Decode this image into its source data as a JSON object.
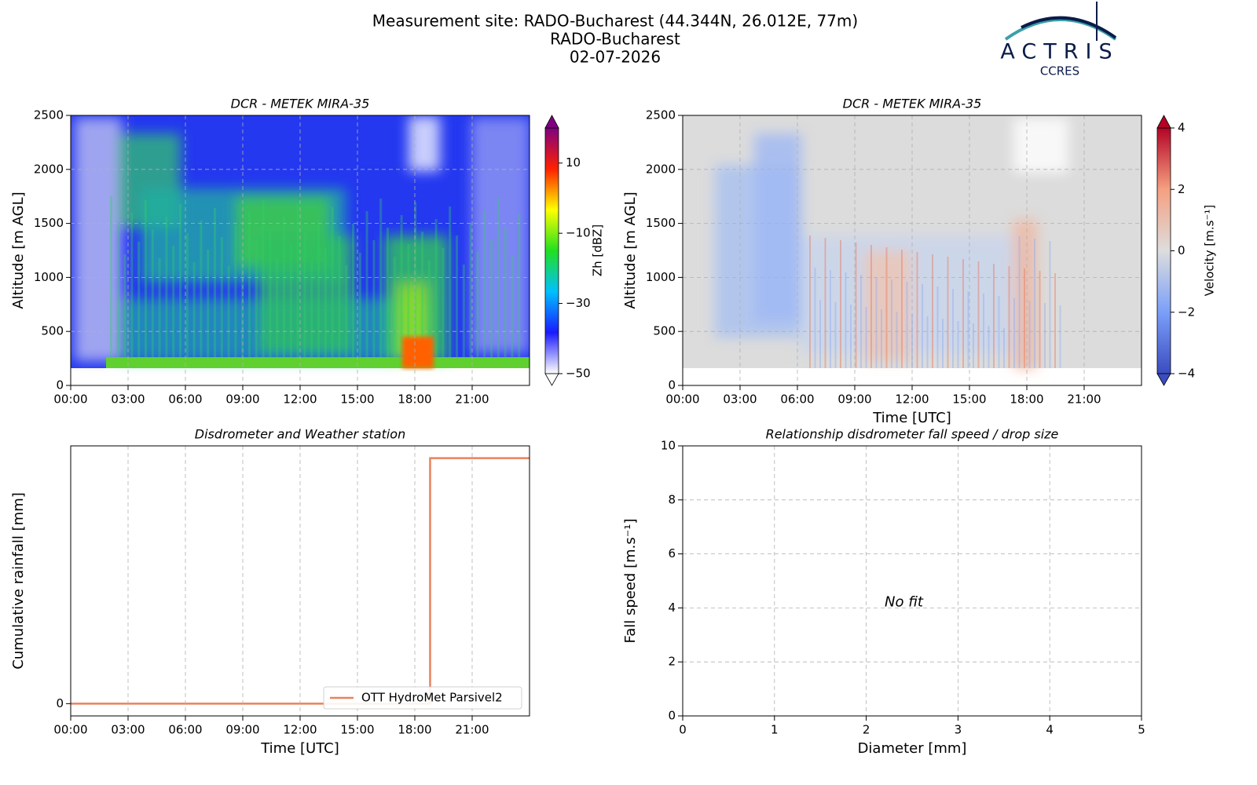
{
  "header": {
    "title_lines": [
      "Measurement site: RADO-Bucharest (44.344N, 26.012E, 77m)",
      "RADO-Bucharest",
      "02-07-2026"
    ]
  },
  "logo": {
    "name": "ACTRIS",
    "sub": "CCRES"
  },
  "chart_data": [
    {
      "type": "heatmap",
      "title": "DCR - METEK MIRA-35",
      "ylabel": "Altitude [m AGL]",
      "xlim": [
        0,
        24
      ],
      "xticks": [
        {
          "value": 0,
          "label": "00:00"
        },
        {
          "value": 3,
          "label": "03:00"
        },
        {
          "value": 6,
          "label": "06:00"
        },
        {
          "value": 9,
          "label": "09:00"
        },
        {
          "value": 12,
          "label": "12:00"
        },
        {
          "value": 15,
          "label": "15:00"
        },
        {
          "value": 18,
          "label": "18:00"
        },
        {
          "value": 21,
          "label": "21:00"
        }
      ],
      "ylim": [
        0,
        2500
      ],
      "yticks": [
        0,
        500,
        1000,
        1500,
        2000,
        2500
      ],
      "grid": true,
      "colorbar": {
        "label": "Zh [dBZ]",
        "lim": [
          -50,
          20
        ],
        "ticks": [
          {
            "value": -50,
            "label": "−50"
          },
          {
            "value": -30,
            "label": "−30"
          },
          {
            "value": -10,
            "label": "−10"
          },
          10
        ],
        "colors": [
          "#ffffff",
          "#1a1aff",
          "#00c0ff",
          "#20e020",
          "#ffff00",
          "#ff2000",
          "#800080"
        ]
      }
    },
    {
      "type": "heatmap",
      "title": "DCR - METEK MIRA-35",
      "ylabel": "Altitude [m AGL]",
      "xlabel": "Time [UTC]",
      "xlim": [
        0,
        24
      ],
      "xticks": [
        {
          "value": 0,
          "label": "00:00"
        },
        {
          "value": 3,
          "label": "03:00"
        },
        {
          "value": 6,
          "label": "06:00"
        },
        {
          "value": 9,
          "label": "09:00"
        },
        {
          "value": 12,
          "label": "12:00"
        },
        {
          "value": 15,
          "label": "15:00"
        },
        {
          "value": 18,
          "label": "18:00"
        },
        {
          "value": 21,
          "label": "21:00"
        }
      ],
      "ylim": [
        0,
        2500
      ],
      "yticks": [
        0,
        500,
        1000,
        1500,
        2000,
        2500
      ],
      "grid": true,
      "colorbar": {
        "label": "Velocity [m.s⁻¹]",
        "lim": [
          -4,
          4
        ],
        "ticks": [
          {
            "value": -4,
            "label": "−4"
          },
          {
            "value": -2,
            "label": "−2"
          },
          0,
          2,
          4
        ],
        "colors": [
          "#3b4cc0",
          "#7b9ff9",
          "#dddddd",
          "#f5a081",
          "#b40426"
        ]
      }
    },
    {
      "type": "line",
      "title": "Disdrometer and Weather station",
      "ylabel": "Cumulative rainfall [mm]",
      "xlabel": "Time [UTC]",
      "xlim": [
        0,
        24
      ],
      "xticks": [
        {
          "value": 0,
          "label": "00:00"
        },
        {
          "value": 3,
          "label": "03:00"
        },
        {
          "value": 6,
          "label": "06:00"
        },
        {
          "value": 9,
          "label": "09:00"
        },
        {
          "value": 12,
          "label": "12:00"
        },
        {
          "value": 15,
          "label": "15:00"
        },
        {
          "value": 18,
          "label": "18:00"
        },
        {
          "value": 21,
          "label": "21:00"
        }
      ],
      "ylim": [
        -0.05,
        1.05
      ],
      "yticks": [
        0
      ],
      "grid": "x",
      "legend": "lower right",
      "x": [
        0,
        18.8,
        18.8,
        24
      ],
      "series": [
        {
          "name": "OTT HydroMet Parsivel2",
          "color": "#e9825b",
          "values": [
            0,
            0,
            1,
            1
          ]
        }
      ]
    },
    {
      "type": "scatter",
      "title": "Relationship disdrometer fall speed / drop size",
      "ylabel": "Fall speed [m.s⁻¹]",
      "xlabel": "Diameter [mm]",
      "xlim": [
        0,
        5
      ],
      "xticks": [
        0,
        1,
        2,
        3,
        4,
        5
      ],
      "ylim": [
        0,
        10
      ],
      "yticks": [
        0,
        2,
        4,
        6,
        8,
        10
      ],
      "grid": true,
      "annotation": "No fit",
      "series": []
    }
  ]
}
